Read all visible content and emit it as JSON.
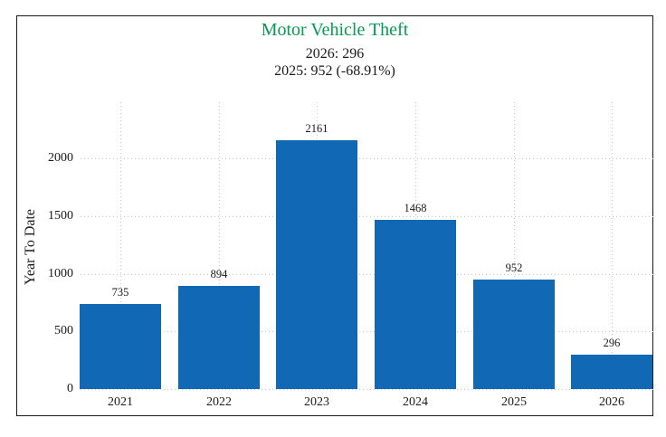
{
  "chart_data": {
    "type": "bar",
    "title": "Motor Vehicle Theft",
    "subtitle_lines": [
      "2026: 296",
      "2025: 952 (-68.91%)"
    ],
    "categories": [
      "2021",
      "2022",
      "2023",
      "2024",
      "2025",
      "2026"
    ],
    "values": [
      735,
      894,
      2161,
      1468,
      952,
      296
    ],
    "bar_labels": [
      "735",
      "894",
      "2161",
      "1468",
      "952",
      "296"
    ],
    "xlabel": "",
    "ylabel": "Year To Date",
    "yticks": [
      0,
      500,
      1000,
      1500,
      2000
    ],
    "ylim": [
      0,
      2490
    ],
    "grid": "dotted-horizontal-and-vertical",
    "legend": "none",
    "colors": {
      "bar": "#1169b5",
      "title": "#049a50",
      "text": "#1a1a1a",
      "grid": "#c6c6c6",
      "frame": "#1a1a1a",
      "background": "#ffffff"
    }
  }
}
